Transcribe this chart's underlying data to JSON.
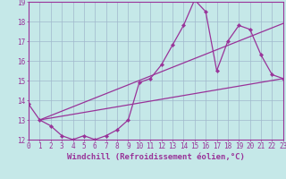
{
  "xlabel": "Windchill (Refroidissement éolien,°C)",
  "xlim": [
    0,
    23
  ],
  "ylim": [
    12,
    19
  ],
  "xticks": [
    0,
    1,
    2,
    3,
    4,
    5,
    6,
    7,
    8,
    9,
    10,
    11,
    12,
    13,
    14,
    15,
    16,
    17,
    18,
    19,
    20,
    21,
    22,
    23
  ],
  "yticks": [
    12,
    13,
    14,
    15,
    16,
    17,
    18,
    19
  ],
  "background_color": "#c5e8e8",
  "grid_color": "#a0b8cc",
  "line_color": "#993399",
  "zigzag_x": [
    0,
    1,
    2,
    3,
    4,
    5,
    6,
    7,
    8,
    9,
    10,
    11,
    12,
    13,
    14,
    15,
    16,
    17,
    18,
    19,
    20,
    21,
    22,
    23
  ],
  "zigzag_y": [
    13.8,
    13.0,
    12.7,
    12.2,
    12.0,
    12.2,
    12.0,
    12.2,
    12.5,
    13.0,
    14.9,
    15.1,
    15.8,
    16.8,
    17.8,
    19.1,
    18.5,
    15.5,
    17.0,
    17.8,
    17.6,
    16.3,
    15.3,
    15.1
  ],
  "trend1_x": [
    1,
    23
  ],
  "trend1_y": [
    13.0,
    17.9
  ],
  "trend2_x": [
    1,
    23
  ],
  "trend2_y": [
    13.0,
    15.1
  ],
  "font_size_tick": 5.5,
  "font_size_label": 6.5
}
